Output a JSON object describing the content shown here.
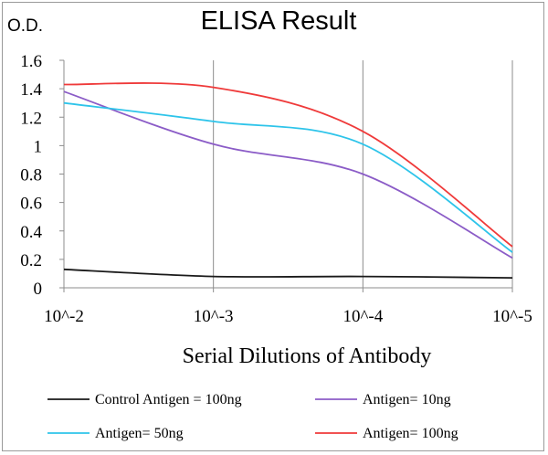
{
  "chart_data": {
    "type": "line",
    "title": "ELISA Result",
    "ylabel": "O.D.",
    "xlabel": "Serial Dilutions  of Antibody",
    "x_categories": [
      "10^-2",
      "10^-3",
      "10^-4",
      "10^-5"
    ],
    "y_ticks": [
      "0",
      "0.2",
      "0.4",
      "0.6",
      "0.8",
      "1",
      "1.2",
      "1.4",
      "1.6"
    ],
    "ylim": [
      0,
      1.6
    ],
    "grid": "vertical",
    "legend_position": "bottom",
    "series": [
      {
        "name": "Control Antigen = 100ng",
        "color": "#1a1a1a",
        "values": [
          0.13,
          0.08,
          0.08,
          0.07
        ]
      },
      {
        "name": "Antigen= 10ng",
        "color": "#8b5cc7",
        "values": [
          1.38,
          1.01,
          0.8,
          0.21
        ]
      },
      {
        "name": "Antigen= 50ng",
        "color": "#2ec4ea",
        "values": [
          1.3,
          1.17,
          1.01,
          0.25
        ]
      },
      {
        "name": "Antigen= 100ng",
        "color": "#ef3a3a",
        "values": [
          1.43,
          1.41,
          1.1,
          0.29
        ]
      }
    ]
  }
}
